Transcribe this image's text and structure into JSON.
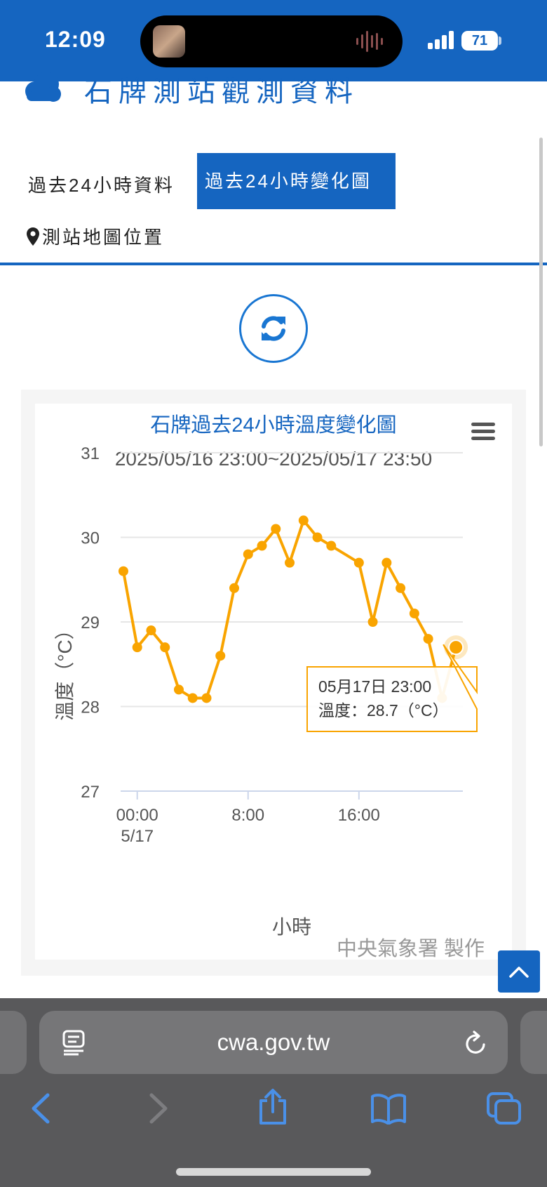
{
  "status_bar": {
    "time": "12:09",
    "battery": "71"
  },
  "header": {
    "title": "石牌測站觀測資料"
  },
  "tabs": [
    {
      "label": "過去24小時資料",
      "active": false
    },
    {
      "label": "過去24小時變化圖",
      "active": true
    },
    {
      "label": "測站地圖位置",
      "active": false,
      "icon": "map-pin-icon"
    }
  ],
  "colors": {
    "brand": "#1565c0",
    "series": "#f9a400",
    "grid": "#e6e6e6"
  },
  "chart_data": {
    "type": "line",
    "title": "石牌過去24小時溫度變化圖",
    "subtitle": "2025/05/16 23:00~2025/05/17 23:50",
    "xlabel": "小時",
    "ylabel": "溫度（°C）",
    "ylim": [
      27,
      31
    ],
    "y_ticks": [
      "31",
      "30",
      "29",
      "28",
      "27"
    ],
    "x_ticks": [
      {
        "hour": 0,
        "label": "00:00",
        "sublabel": "5/17"
      },
      {
        "hour": 8,
        "label": "8:00",
        "sublabel": ""
      },
      {
        "hour": 16,
        "label": "16:00",
        "sublabel": ""
      }
    ],
    "grid": true,
    "legend": "none",
    "series": [
      {
        "x": [
          -1,
          0,
          1,
          2,
          3,
          4,
          5,
          6,
          7,
          8,
          9,
          10,
          11,
          12,
          13,
          14,
          16,
          17,
          18,
          19,
          20,
          21,
          22,
          23
        ],
        "values": [
          29.6,
          28.7,
          28.9,
          28.7,
          28.2,
          28.1,
          28.1,
          28.6,
          29.4,
          29.8,
          29.9,
          30.1,
          29.7,
          30.2,
          30.0,
          29.9,
          29.7,
          29.0,
          29.7,
          29.4,
          29.1,
          28.8,
          28.1,
          28.7
        ]
      }
    ],
    "tooltip": {
      "date": "05月17日 23:00",
      "text": "溫度：28.7（°C）"
    },
    "credit": "中央氣象署 製作"
  },
  "browser": {
    "url": "cwa.gov.tw"
  }
}
